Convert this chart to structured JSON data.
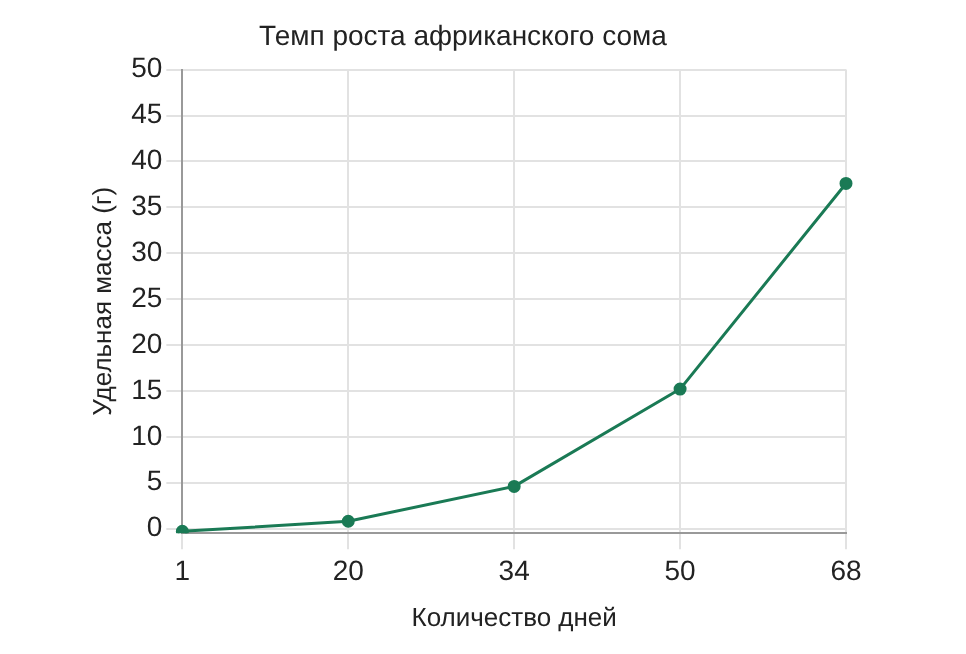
{
  "chart_data": {
    "type": "line",
    "title": "Темп роста африканского сома",
    "xlabel": "Количество дней",
    "ylabel": "Удельная масса (г)",
    "categories": [
      "1",
      "20",
      "34",
      "50",
      "68"
    ],
    "series": [
      {
        "color": "#1a7a55",
        "values": [
          -0.3,
          0.8,
          4.6,
          15.2,
          37.6
        ]
      }
    ],
    "ylim": [
      -0.5,
      50
    ],
    "yticks": [
      0,
      5,
      10,
      15,
      20,
      25,
      30,
      35,
      40,
      45,
      50
    ],
    "grid": true,
    "marker": "circle",
    "line_style": "solid"
  }
}
